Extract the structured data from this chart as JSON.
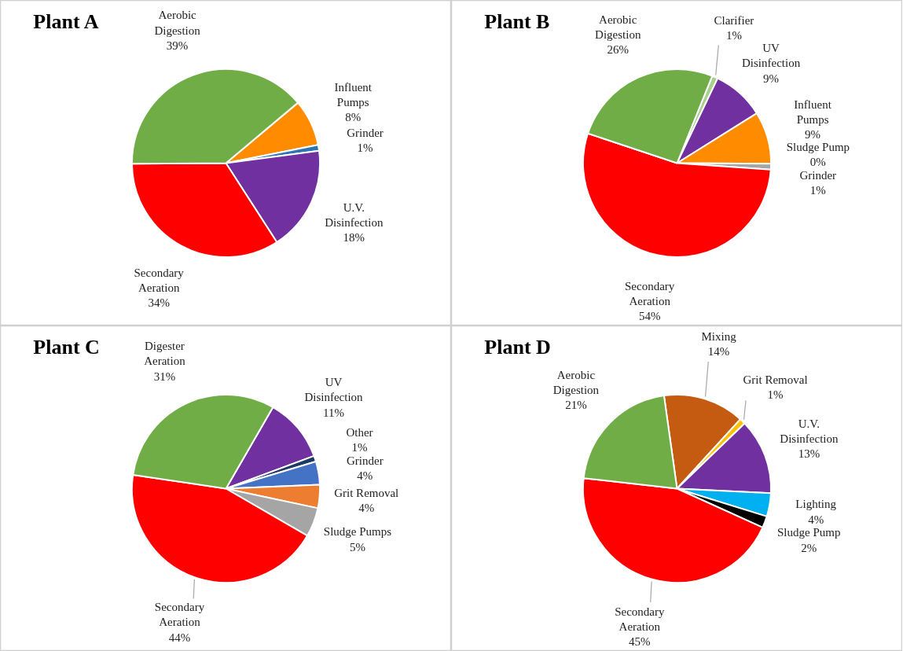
{
  "chart_data": [
    {
      "type": "pie",
      "title": "Plant A",
      "categories": [
        "Influent Pumps",
        "Grinder",
        "U.V. Disinfection",
        "Secondary Aeration",
        "Aerobic Digestion"
      ],
      "values": [
        8,
        1,
        18,
        34,
        39
      ],
      "value_labels": [
        "8%",
        "1%",
        "18%",
        "34%",
        "39%"
      ],
      "colors": [
        "#ff8c00",
        "#2e75b6",
        "#7030a0",
        "#ff0000",
        "#70ad47"
      ]
    },
    {
      "type": "pie",
      "title": "Plant B",
      "categories": [
        "Clarifier",
        "UV Disinfection",
        "Influent Pumps",
        "Sludge Pump",
        "Grinder",
        "Secondary Aeration",
        "Aerobic Digestion"
      ],
      "values": [
        1,
        9,
        9,
        0,
        1,
        54,
        26
      ],
      "value_labels": [
        "1%",
        "9%",
        "9%",
        "0%",
        "1%",
        "54%",
        "26%"
      ],
      "colors": [
        "#a9d18e",
        "#7030a0",
        "#ff8c00",
        "#ffc000",
        "#a5a5a5",
        "#ff0000",
        "#70ad47"
      ]
    },
    {
      "type": "pie",
      "title": "Plant C",
      "categories": [
        "UV Disinfection",
        "Other",
        "Grinder",
        "Grit Removal",
        "Sludge Pumps",
        "Secondary Aeration",
        "Digester Aeration"
      ],
      "values": [
        11,
        1,
        4,
        4,
        5,
        44,
        31
      ],
      "value_labels": [
        "11%",
        "1%",
        "4%",
        "4%",
        "5%",
        "44%",
        "31%"
      ],
      "colors": [
        "#7030a0",
        "#203864",
        "#4472c4",
        "#ed7d31",
        "#a5a5a5",
        "#ff0000",
        "#70ad47"
      ]
    },
    {
      "type": "pie",
      "title": "Plant D",
      "categories": [
        "Mixing",
        "Grit Removal",
        "U.V. Disinfection",
        "Lighting",
        "Sludge Pump",
        "Secondary Aeration",
        "Aerobic Digestion"
      ],
      "values": [
        14,
        1,
        13,
        4,
        2,
        45,
        21
      ],
      "value_labels": [
        "14%",
        "1%",
        "13%",
        "4%",
        "2%",
        "45%",
        "21%"
      ],
      "colors": [
        "#c55a11",
        "#ffc000",
        "#7030a0",
        "#00b0f0",
        "#000000",
        "#ff0000",
        "#70ad47"
      ]
    }
  ]
}
